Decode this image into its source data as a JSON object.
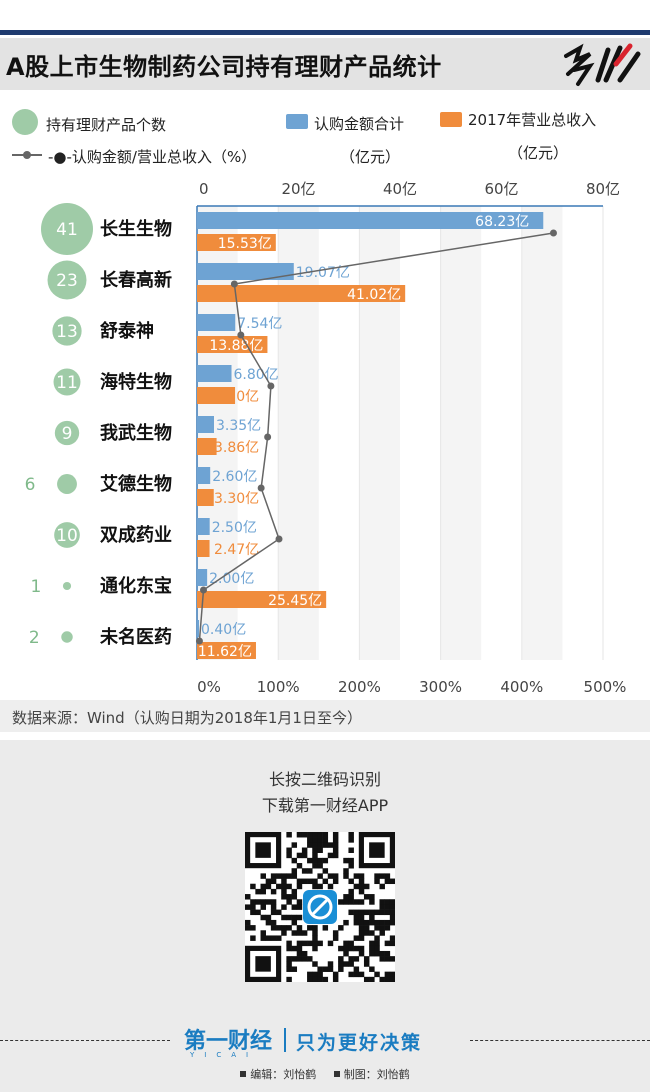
{
  "header": {
    "title": "A股上市生物制药公司持有理财产品统计",
    "brand_text": "多数"
  },
  "legend": {
    "count_label": "持有理财产品个数",
    "ratio_label": "-●-认购金额/营业总收入（%）",
    "subscription_label": "认购金额合计",
    "subscription_unit": "（亿元）",
    "revenue_label": "2017年营业总收入",
    "revenue_unit": "（亿元）"
  },
  "colors": {
    "subscription": "#6ea3d3",
    "revenue": "#f08c3c",
    "count_bubble": "#9fcba7",
    "ratio_line": "#666666",
    "header_rule": "#1e3a6e",
    "slogan": "#1a7cc1"
  },
  "chart_data": {
    "type": "bar",
    "orientation": "horizontal",
    "categories": [
      "长生生物",
      "长春高新",
      "舒泰神",
      "海特生物",
      "我武生物",
      "艾德生物",
      "双成药业",
      "通化东宝",
      "未名医药"
    ],
    "series": [
      {
        "name": "认购金额合计",
        "values": [
          68.23,
          19.07,
          7.54,
          6.8,
          3.35,
          2.6,
          2.5,
          2.0,
          0.4
        ],
        "labels": [
          "68.23亿",
          "19.07亿",
          "7.54亿",
          "6.80亿",
          "3.35亿",
          "2.60亿",
          "2.50亿",
          "2.00亿",
          "0.40亿"
        ]
      },
      {
        "name": "2017年营业总收入",
        "values": [
          15.53,
          41.02,
          13.88,
          7.5,
          3.86,
          3.3,
          2.47,
          25.45,
          11.62
        ],
        "labels": [
          "15.53亿",
          "41.02亿",
          "13.88亿",
          "7.50亿",
          "3.86亿",
          "3.30亿",
          "2.47亿",
          "25.45亿",
          "11.62亿"
        ]
      },
      {
        "name": "认购金额/营业总收入（%）",
        "type": "line",
        "values": [
          439,
          46,
          54,
          91,
          87,
          79,
          101,
          8,
          3
        ]
      },
      {
        "name": "持有理财产品个数",
        "type": "bubble",
        "values": [
          41,
          23,
          13,
          11,
          9,
          6,
          10,
          1,
          2
        ],
        "labels": [
          "41",
          "23",
          "13",
          "11",
          "9",
          "6",
          "10",
          "1",
          "2"
        ]
      }
    ],
    "top_axis": {
      "ticks": [
        "0",
        "20亿",
        "40亿",
        "60亿",
        "80亿"
      ],
      "range": [
        0,
        80
      ]
    },
    "bottom_axis": {
      "ticks": [
        "0%",
        "100%",
        "200%",
        "300%",
        "400%",
        "500%"
      ],
      "range": [
        0,
        500
      ]
    }
  },
  "source": "数据来源：Wind（认购日期为2018年1月1日至今）",
  "footer": {
    "promo_line1": "长按二维码识别",
    "promo_line2": "下载第一财经APP",
    "logo_text": "第一财经",
    "slogan": "只为更好决策",
    "editor": "编辑：刘怡鹤",
    "designer": "制图：刘怡鹤"
  }
}
